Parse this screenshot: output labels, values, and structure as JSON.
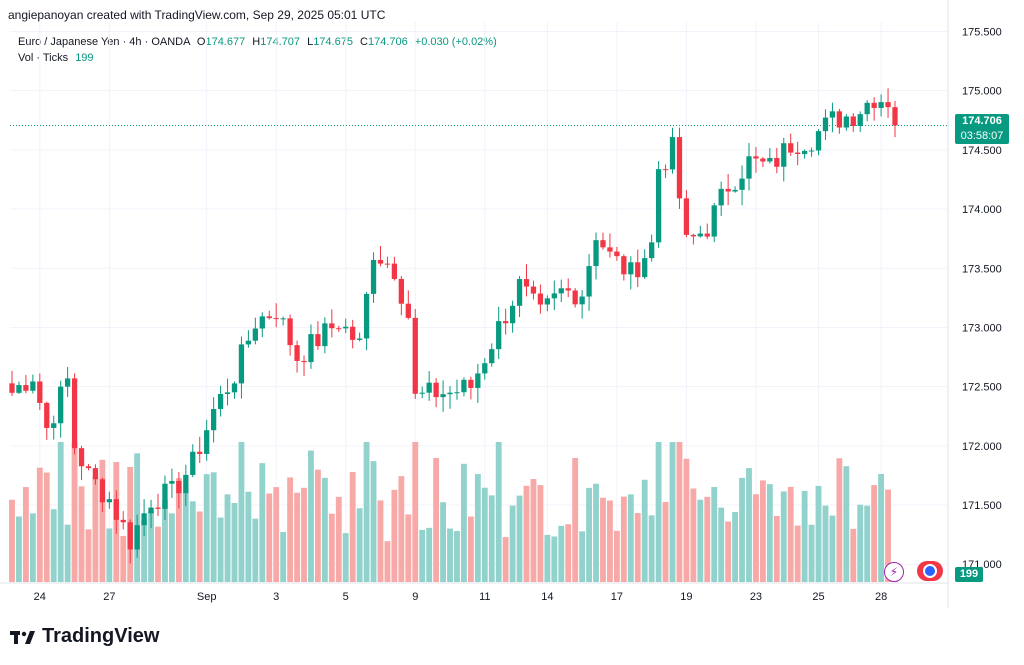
{
  "credit": "angiepanoyan created with TradingView.com, Sep 29, 2025 05:01 UTC",
  "legend": {
    "symbol": "Euro / Japanese Yen · 4h · OANDA",
    "open_label": "O",
    "open": "174.677",
    "high_label": "H",
    "high": "174.707",
    "low_label": "L",
    "low": "174.675",
    "close_label": "C",
    "close": "174.706",
    "change": "+0.030 (+0.02%)",
    "vol_label": "Vol · Ticks",
    "vol_value": "199"
  },
  "price_tag": {
    "price": "174.706",
    "countdown": "03:58:07"
  },
  "volume_tag": "199",
  "brand": "TradingView",
  "icons": [
    "lightning-icon",
    "flag-icon",
    "tradingview-logo-icon"
  ],
  "colors": {
    "up": "#089981",
    "down": "#f23645",
    "up_vol": "#92d2cc",
    "down_vol": "#f7a9a7"
  },
  "chart_data": {
    "type": "candlestick",
    "title": "Euro / Japanese Yen · 4h · OANDA",
    "y_ticks": [
      "175.500",
      "175.000",
      "174.500",
      "174.000",
      "173.500",
      "173.000",
      "172.500",
      "172.000",
      "171.500",
      "171.000"
    ],
    "y_range": [
      170.85,
      175.58
    ],
    "x_labels": [
      "24",
      "27",
      "Sep",
      "3",
      "5",
      "9",
      "11",
      "14",
      "17",
      "19",
      "23",
      "25",
      "28"
    ],
    "x_label_bar_index": [
      4,
      14,
      28,
      38,
      48,
      58,
      68,
      77,
      87,
      97,
      107,
      116,
      125
    ],
    "current_price": 174.706,
    "waypoints": [
      [
        0,
        172.45
      ],
      [
        3,
        172.6
      ],
      [
        5,
        172.15
      ],
      [
        8,
        172.55
      ],
      [
        9,
        172.0
      ],
      [
        11,
        171.75
      ],
      [
        14,
        171.55
      ],
      [
        17,
        171.2
      ],
      [
        20,
        171.55
      ],
      [
        23,
        171.6
      ],
      [
        26,
        171.85
      ],
      [
        29,
        172.3
      ],
      [
        32,
        172.6
      ],
      [
        35,
        173.05
      ],
      [
        38,
        173.15
      ],
      [
        41,
        172.75
      ],
      [
        44,
        172.9
      ],
      [
        47,
        173.05
      ],
      [
        50,
        172.85
      ],
      [
        52,
        173.65
      ],
      [
        55,
        173.5
      ],
      [
        57,
        173.1
      ],
      [
        58,
        172.4
      ],
      [
        61,
        172.45
      ],
      [
        63,
        172.45
      ],
      [
        66,
        172.5
      ],
      [
        70,
        173.0
      ],
      [
        73,
        173.35
      ],
      [
        76,
        173.1
      ],
      [
        79,
        173.3
      ],
      [
        82,
        173.3
      ],
      [
        84,
        173.8
      ],
      [
        86,
        173.6
      ],
      [
        89,
        173.45
      ],
      [
        92,
        173.7
      ],
      [
        93,
        174.35
      ],
      [
        95,
        174.5
      ],
      [
        97,
        173.7
      ],
      [
        100,
        173.85
      ],
      [
        103,
        174.2
      ],
      [
        106,
        174.4
      ],
      [
        109,
        174.35
      ],
      [
        112,
        174.55
      ],
      [
        115,
        174.6
      ],
      [
        118,
        174.75
      ],
      [
        121,
        174.8
      ],
      [
        124,
        174.95
      ],
      [
        126,
        174.92
      ],
      [
        127,
        174.7
      ]
    ],
    "volume_range_ticks": [
      0,
      1200
    ],
    "latest_volume": 199
  }
}
